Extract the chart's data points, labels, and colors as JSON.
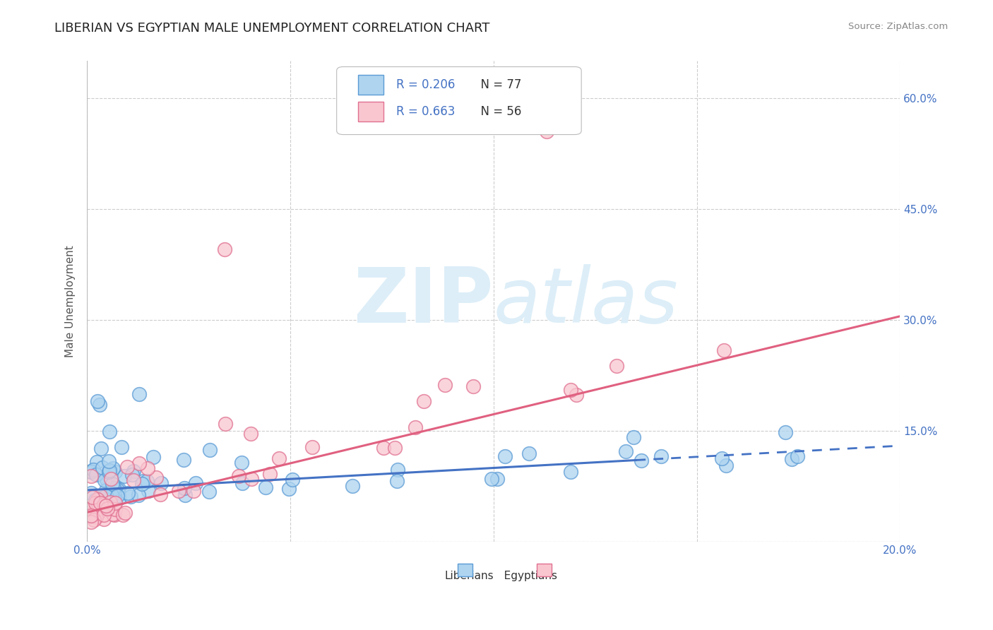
{
  "title": "LIBERIAN VS EGYPTIAN MALE UNEMPLOYMENT CORRELATION CHART",
  "source_text": "Source: ZipAtlas.com",
  "ylabel": "Male Unemployment",
  "xlim": [
    0.0,
    0.2
  ],
  "ylim": [
    0.0,
    0.65
  ],
  "xticks": [
    0.0,
    0.05,
    0.1,
    0.15,
    0.2
  ],
  "xtick_labels": [
    "0.0%",
    "",
    "",
    "",
    "20.0%"
  ],
  "yticks": [
    0.0,
    0.15,
    0.3,
    0.45,
    0.6
  ],
  "ytick_labels": [
    "",
    "15.0%",
    "30.0%",
    "45.0%",
    "60.0%"
  ],
  "legend_r1": "R = 0.206",
  "legend_n1": "N = 77",
  "legend_r2": "R = 0.663",
  "legend_n2": "N = 56",
  "color_liberians_fill": "#AED4F0",
  "color_liberians_edge": "#5B9BD5",
  "color_egyptians_fill": "#F9C6D0",
  "color_egyptians_edge": "#E07090",
  "color_line_liberians": "#4472C4",
  "color_line_egyptians": "#E06080",
  "watermark_zip": "ZIP",
  "watermark_atlas": "atlas",
  "watermark_color": "#DDEEF8",
  "background_color": "#FFFFFF",
  "grid_color": "#CCCCCC",
  "title_fontsize": 13,
  "axis_label_color": "#4472C4",
  "tick_label_color": "#4472C4",
  "legend_text_r_color": "#4472C4",
  "legend_text_n_color": "#333333",
  "lib_line_solid_end": 0.135,
  "lib_line_x0": 0.0,
  "lib_line_y0": 0.07,
  "lib_line_x1": 0.2,
  "lib_line_y1": 0.13,
  "egy_line_x0": 0.0,
  "egy_line_y0": 0.04,
  "egy_line_x1": 0.2,
  "egy_line_y1": 0.305
}
